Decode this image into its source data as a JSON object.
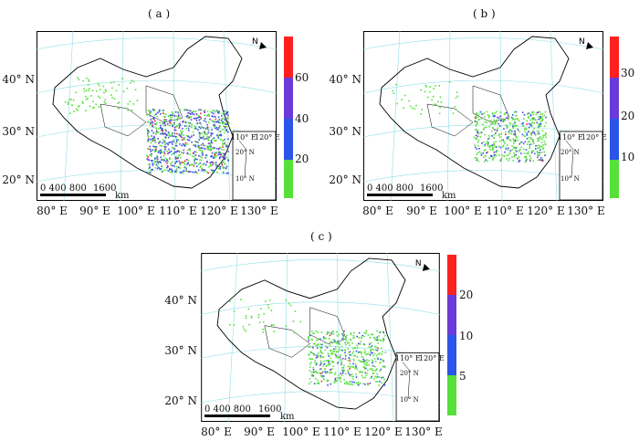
{
  "panels": [
    {
      "label": "( a )",
      "x_ticks": [
        "80° E",
        "90° E",
        "100° E",
        "110° E",
        "120° E",
        "130° E"
      ],
      "y_ticks": [
        "40° N",
        "30° N",
        "20° N"
      ],
      "scale": {
        "numbers": "0 400 800",
        "end": "1600",
        "unit": "km"
      },
      "inset": {
        "ticks": [
          "110° E",
          "120° E"
        ],
        "lat": [
          "20° N",
          "10° N"
        ]
      },
      "colorbar": {
        "labels": [
          "60",
          "40",
          "20"
        ],
        "colors": [
          "#ff2020",
          "#6a3bd8",
          "#2a55e8",
          "#55e03a"
        ]
      }
    },
    {
      "label": "( b )",
      "x_ticks": [
        "80° E",
        "90° E",
        "100° E",
        "110° E",
        "120° E",
        "130° E"
      ],
      "y_ticks": [
        "40° N",
        "30° N",
        "20° N"
      ],
      "scale": {
        "numbers": "0 400 800",
        "end": "1600",
        "unit": "km"
      },
      "inset": {
        "ticks": [
          "110° E",
          "120° E"
        ],
        "lat": [
          "20° N",
          "10° N"
        ]
      },
      "colorbar": {
        "labels": [
          "30",
          "20",
          "10"
        ],
        "colors": [
          "#ff2020",
          "#6a3bd8",
          "#2a55e8",
          "#55e03a"
        ]
      }
    },
    {
      "label": "( c )",
      "x_ticks": [
        "80° E",
        "90° E",
        "100° E",
        "110° E",
        "120° E",
        "130° E"
      ],
      "y_ticks": [
        "40° N",
        "30° N",
        "20° N"
      ],
      "scale": {
        "numbers": "0 400 800",
        "end": "1600",
        "unit": "km"
      },
      "inset": {
        "ticks": [
          "110° E",
          "120° E"
        ],
        "lat": [
          "20° N",
          "10° N"
        ]
      },
      "colorbar": {
        "labels": [
          "20",
          "10",
          "5"
        ],
        "colors": [
          "#ff2020",
          "#6a3bd8",
          "#2a55e8",
          "#55e03a"
        ]
      }
    }
  ]
}
